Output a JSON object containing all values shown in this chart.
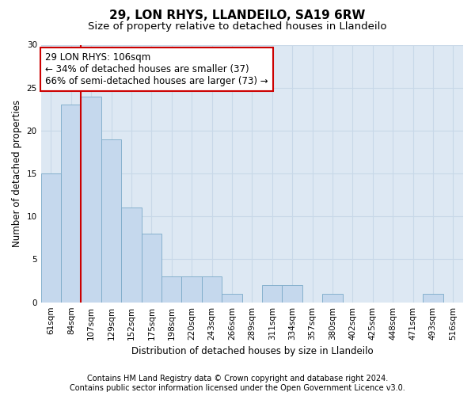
{
  "title": "29, LON RHYS, LLANDEILO, SA19 6RW",
  "subtitle": "Size of property relative to detached houses in Llandeilo",
  "xlabel": "Distribution of detached houses by size in Llandeilo",
  "ylabel": "Number of detached properties",
  "categories": [
    "61sqm",
    "84sqm",
    "107sqm",
    "129sqm",
    "152sqm",
    "175sqm",
    "198sqm",
    "220sqm",
    "243sqm",
    "266sqm",
    "289sqm",
    "311sqm",
    "334sqm",
    "357sqm",
    "380sqm",
    "402sqm",
    "425sqm",
    "448sqm",
    "471sqm",
    "493sqm",
    "516sqm"
  ],
  "values": [
    15,
    23,
    24,
    19,
    11,
    8,
    3,
    3,
    3,
    1,
    0,
    2,
    2,
    0,
    1,
    0,
    0,
    0,
    0,
    1,
    0
  ],
  "bar_color": "#c5d8ed",
  "bar_edge_color": "#7baac8",
  "property_label": "29 LON RHYS: 106sqm",
  "annotation_line1": "← 34% of detached houses are smaller (37)",
  "annotation_line2": "66% of semi-detached houses are larger (73) →",
  "annotation_box_color": "#ffffff",
  "annotation_box_edge": "#cc0000",
  "ylim": [
    0,
    30
  ],
  "yticks": [
    0,
    5,
    10,
    15,
    20,
    25,
    30
  ],
  "footer_line1": "Contains HM Land Registry data © Crown copyright and database right 2024.",
  "footer_line2": "Contains public sector information licensed under the Open Government Licence v3.0.",
  "grid_color": "#c8d8e8",
  "background_color": "#dde8f3",
  "title_fontsize": 11,
  "subtitle_fontsize": 9.5,
  "tick_fontsize": 7.5,
  "ylabel_fontsize": 8.5,
  "xlabel_fontsize": 8.5,
  "footer_fontsize": 7,
  "annot_fontsize": 8.5
}
